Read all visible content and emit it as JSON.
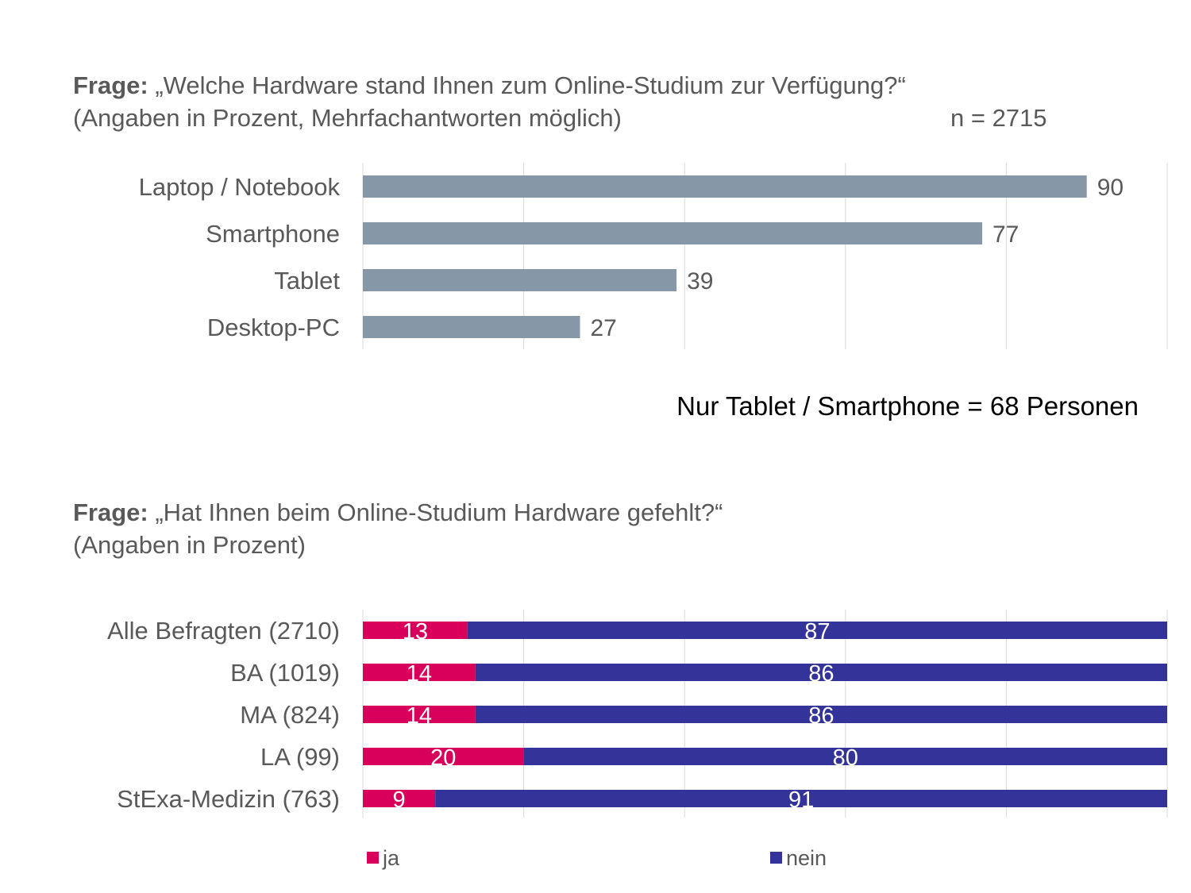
{
  "question1": {
    "label": "Frage:",
    "text": " „Welche Hardware stand Ihnen zum Online-Studium zur Verfügung?“",
    "note": "(Angaben in Prozent, Mehrfachantworten möglich)",
    "n": "n = 2715"
  },
  "highlight_note": "Nur Tablet / Smartphone = 68 Personen",
  "question2": {
    "label": "Frage:",
    "text": " „Hat Ihnen beim Online-Studium Hardware gefehlt?“",
    "note": "(Angaben in Prozent)"
  },
  "chart_data": [
    {
      "type": "bar",
      "orientation": "horizontal",
      "categories": [
        "Laptop / Notebook",
        "Smartphone",
        "Tablet",
        "Desktop-PC"
      ],
      "values": [
        90,
        77,
        39,
        27
      ],
      "xlim": [
        0,
        100
      ],
      "grid": true,
      "colors": {
        "bar": "#8698a8",
        "grid": "#d9d9d9",
        "text": "#595959"
      }
    },
    {
      "type": "bar",
      "orientation": "horizontal",
      "stacked": true,
      "categories": [
        "Alle Befragten (2710)",
        "BA (1019)",
        "MA (824)",
        "LA (99)",
        "StExa-Medizin (763)"
      ],
      "series": [
        {
          "name": "ja",
          "values": [
            13,
            14,
            14,
            20,
            9
          ],
          "color": "#d9005b"
        },
        {
          "name": "nein",
          "values": [
            87,
            86,
            86,
            80,
            91
          ],
          "color": "#333399"
        }
      ],
      "xlim": [
        0,
        100
      ],
      "grid": true,
      "legend": "bottom"
    }
  ]
}
